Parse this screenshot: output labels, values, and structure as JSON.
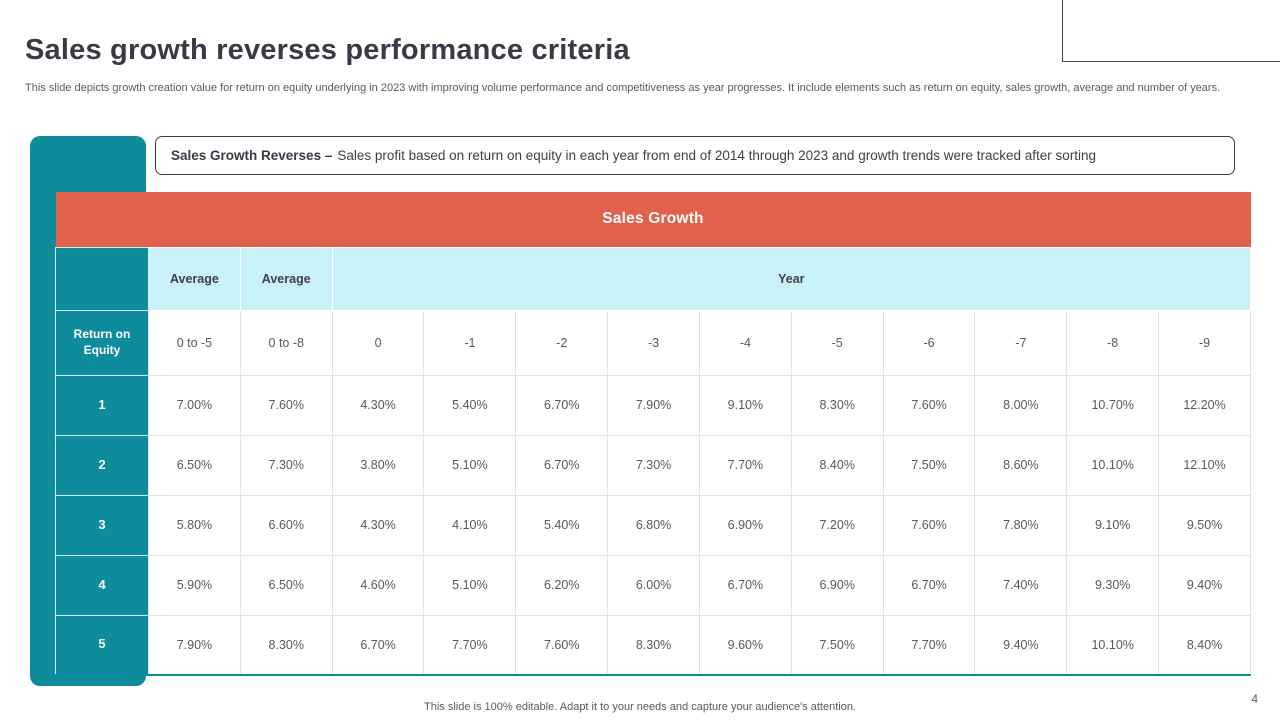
{
  "slide": {
    "title": "Sales growth reverses performance criteria",
    "subtitle": "This slide depicts growth creation value for return on equity underlying in 2023 with improving volume performance and competitiveness as year progresses. It include elements such as return on equity, sales growth, average and number of years.",
    "footer": "This slide is 100% editable. Adapt it to your needs and capture your audience's attention.",
    "page_number": "4"
  },
  "callout": {
    "bold": "Sales Growth Reverses –",
    "text": "Sales profit based on return on equity in each year from end of 2014 through 2023 and growth trends were tracked after sorting"
  },
  "table": {
    "title": "Sales Growth",
    "subheader": {
      "average1": "Average",
      "average2": "Average",
      "year": "Year"
    },
    "row_label_header": "Return on Equity",
    "range_row": [
      "0 to -5",
      "0 to -8",
      "0",
      "-1",
      "-2",
      "-3",
      "-4",
      "-5",
      "-6",
      "-7",
      "-8",
      "-9"
    ],
    "rows": [
      {
        "label": "1",
        "values": [
          "7.00%",
          "7.60%",
          "4.30%",
          "5.40%",
          "6.70%",
          "7.90%",
          "9.10%",
          "8.30%",
          "7.60%",
          "8.00%",
          "10.70%",
          "12.20%"
        ]
      },
      {
        "label": "2",
        "values": [
          "6.50%",
          "7.30%",
          "3.80%",
          "5.10%",
          "6.70%",
          "7.30%",
          "7.70%",
          "8.40%",
          "7.50%",
          "8.60%",
          "10.10%",
          "12.10%"
        ]
      },
      {
        "label": "3",
        "values": [
          "5.80%",
          "6.60%",
          "4.30%",
          "4.10%",
          "5.40%",
          "6.80%",
          "6.90%",
          "7.20%",
          "7.60%",
          "7.80%",
          "9.10%",
          "9.50%"
        ]
      },
      {
        "label": "4",
        "values": [
          "5.90%",
          "6.50%",
          "4.60%",
          "5.10%",
          "6.20%",
          "6.00%",
          "6.70%",
          "6.90%",
          "6.70%",
          "7.40%",
          "9.30%",
          "9.40%"
        ]
      },
      {
        "label": "5",
        "values": [
          "7.90%",
          "8.30%",
          "6.70%",
          "7.70%",
          "7.60%",
          "8.30%",
          "9.60%",
          "7.50%",
          "7.70%",
          "9.40%",
          "10.10%",
          "8.40%"
        ]
      }
    ]
  },
  "chart_data": {
    "type": "table",
    "title": "Sales Growth",
    "column_groups": [
      "Average",
      "Average",
      "Year"
    ],
    "columns": [
      "Return on Equity",
      "0 to -5",
      "0 to -8",
      "0",
      "-1",
      "-2",
      "-3",
      "-4",
      "-5",
      "-6",
      "-7",
      "-8",
      "-9"
    ],
    "rows": [
      [
        "1",
        7.0,
        7.6,
        4.3,
        5.4,
        6.7,
        7.9,
        9.1,
        8.3,
        7.6,
        8.0,
        10.7,
        12.2
      ],
      [
        "2",
        6.5,
        7.3,
        3.8,
        5.1,
        6.7,
        7.3,
        7.7,
        8.4,
        7.5,
        8.6,
        10.1,
        12.1
      ],
      [
        "3",
        5.8,
        6.6,
        4.3,
        4.1,
        5.4,
        6.8,
        6.9,
        7.2,
        7.6,
        7.8,
        9.1,
        9.5
      ],
      [
        "4",
        5.9,
        6.5,
        4.6,
        5.1,
        6.2,
        6.0,
        6.7,
        6.9,
        6.7,
        7.4,
        9.3,
        9.4
      ],
      [
        "5",
        7.9,
        8.3,
        6.7,
        7.7,
        7.6,
        8.3,
        9.6,
        7.5,
        7.7,
        9.4,
        10.1,
        8.4
      ]
    ],
    "unit": "%"
  },
  "colors": {
    "teal": "#0e8c9c",
    "orange": "#e2614d",
    "light_cyan": "#c9f2f8",
    "title_text": "#3d3846",
    "body_text": "#595959",
    "cell_border": "#e3e3e3"
  }
}
